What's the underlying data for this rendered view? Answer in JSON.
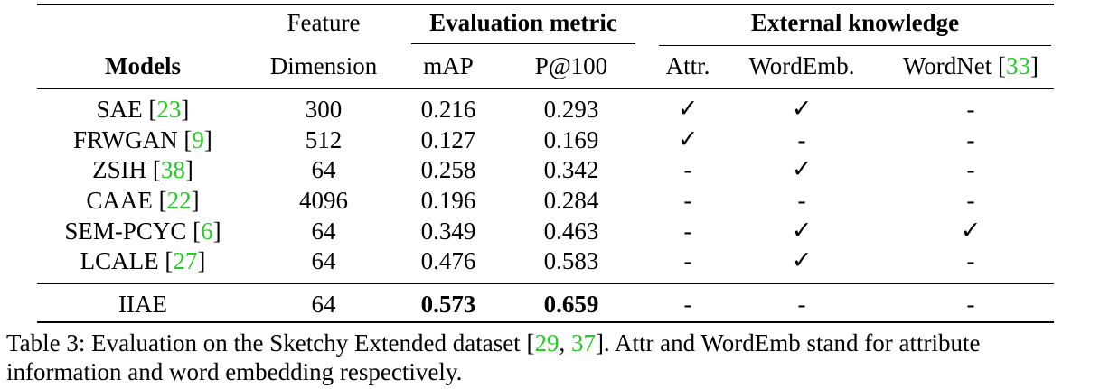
{
  "header": {
    "models": "Models",
    "feature_line1": "Feature",
    "feature_line2": "Dimension",
    "eval_group": "Evaluation metric",
    "external_group": "External knowledge",
    "map": "mAP",
    "p100": "P@100",
    "attr": "Attr.",
    "wordemb": "WordEmb.",
    "wordnet": "WordNet",
    "wordnet_ref": "33"
  },
  "rows": [
    {
      "model": "SAE",
      "ref": "23",
      "dim": "300",
      "map": "0.216",
      "p100": "0.293",
      "attr": "✓",
      "wordemb": "✓",
      "wordnet": "-"
    },
    {
      "model": "FRWGAN",
      "ref": "9",
      "dim": "512",
      "map": "0.127",
      "p100": "0.169",
      "attr": "✓",
      "wordemb": "-",
      "wordnet": "-"
    },
    {
      "model": "ZSIH",
      "ref": "38",
      "dim": "64",
      "map": "0.258",
      "p100": "0.342",
      "attr": "-",
      "wordemb": "✓",
      "wordnet": "-"
    },
    {
      "model": "CAAE",
      "ref": "22",
      "dim": "4096",
      "map": "0.196",
      "p100": "0.284",
      "attr": "-",
      "wordemb": "-",
      "wordnet": "-"
    },
    {
      "model": "SEM-PCYC",
      "ref": "6",
      "dim": "64",
      "map": "0.349",
      "p100": "0.463",
      "attr": "-",
      "wordemb": "✓",
      "wordnet": "✓"
    },
    {
      "model": "LCALE",
      "ref": "27",
      "dim": "64",
      "map": "0.476",
      "p100": "0.583",
      "attr": "-",
      "wordemb": "✓",
      "wordnet": "-"
    }
  ],
  "final_row": {
    "model": "IIAE",
    "dim": "64",
    "map": "0.573",
    "p100": "0.659",
    "attr": "-",
    "wordemb": "-",
    "wordnet": "-"
  },
  "caption": {
    "prefix": "Table 3: Evaluation on the Sketchy Extended dataset [",
    "ref1": "29",
    "sep": ", ",
    "ref2": "37",
    "suffix": "]. Attr and WordEmb stand for attribute",
    "line2": "information and word embedding respectively."
  },
  "colors": {
    "reference": "#22cc22",
    "text": "#000000"
  }
}
